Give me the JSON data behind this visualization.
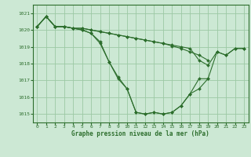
{
  "xlabel": "Graphe pression niveau de la mer (hPa)",
  "bg_color": "#cce8d4",
  "line_color": "#2d6e2d",
  "grid_color": "#9cc8a4",
  "ylim": [
    1014.5,
    1021.5
  ],
  "xlim": [
    -0.5,
    23.5
  ],
  "yticks": [
    1015,
    1016,
    1017,
    1018,
    1019,
    1020,
    1021
  ],
  "xticks": [
    0,
    1,
    2,
    3,
    4,
    5,
    6,
    7,
    8,
    9,
    10,
    11,
    12,
    13,
    14,
    15,
    16,
    17,
    18,
    19,
    20,
    21,
    22,
    23
  ],
  "series": [
    [
      1020.2,
      1020.8,
      1020.2,
      1020.2,
      1020.1,
      1020.1,
      1020.0,
      1019.9,
      1019.8,
      1019.7,
      1019.6,
      1019.5,
      1019.4,
      1019.3,
      1019.2,
      1019.1,
      1019.0,
      1018.9,
      1018.2,
      1017.9,
      1018.7,
      1018.5,
      1018.9,
      1018.9
    ],
    [
      1020.2,
      1020.8,
      1020.2,
      1020.2,
      1020.1,
      1020.0,
      1019.8,
      1019.3,
      1018.1,
      1017.2,
      1016.5,
      1015.1,
      1015.0,
      1015.1,
      1015.0,
      1015.1,
      1015.5,
      1016.2,
      1016.5,
      1017.1,
      1018.7,
      1018.5,
      1018.9,
      1018.9
    ],
    [
      1020.2,
      1020.8,
      1020.2,
      1020.2,
      1020.1,
      1020.0,
      1019.8,
      1019.2,
      1018.1,
      1017.1,
      1016.5,
      1015.1,
      1015.0,
      1015.1,
      1015.0,
      1015.1,
      1015.5,
      1016.2,
      1017.1,
      1017.1,
      null,
      null,
      null,
      null
    ],
    [
      1020.2,
      1020.8,
      1020.2,
      1020.2,
      1020.1,
      1020.1,
      1020.0,
      1019.9,
      1019.8,
      1019.7,
      1019.6,
      1019.5,
      1019.4,
      1019.3,
      1019.2,
      1019.05,
      1018.9,
      1018.7,
      1018.5,
      1018.2,
      null,
      null,
      null,
      null
    ]
  ]
}
